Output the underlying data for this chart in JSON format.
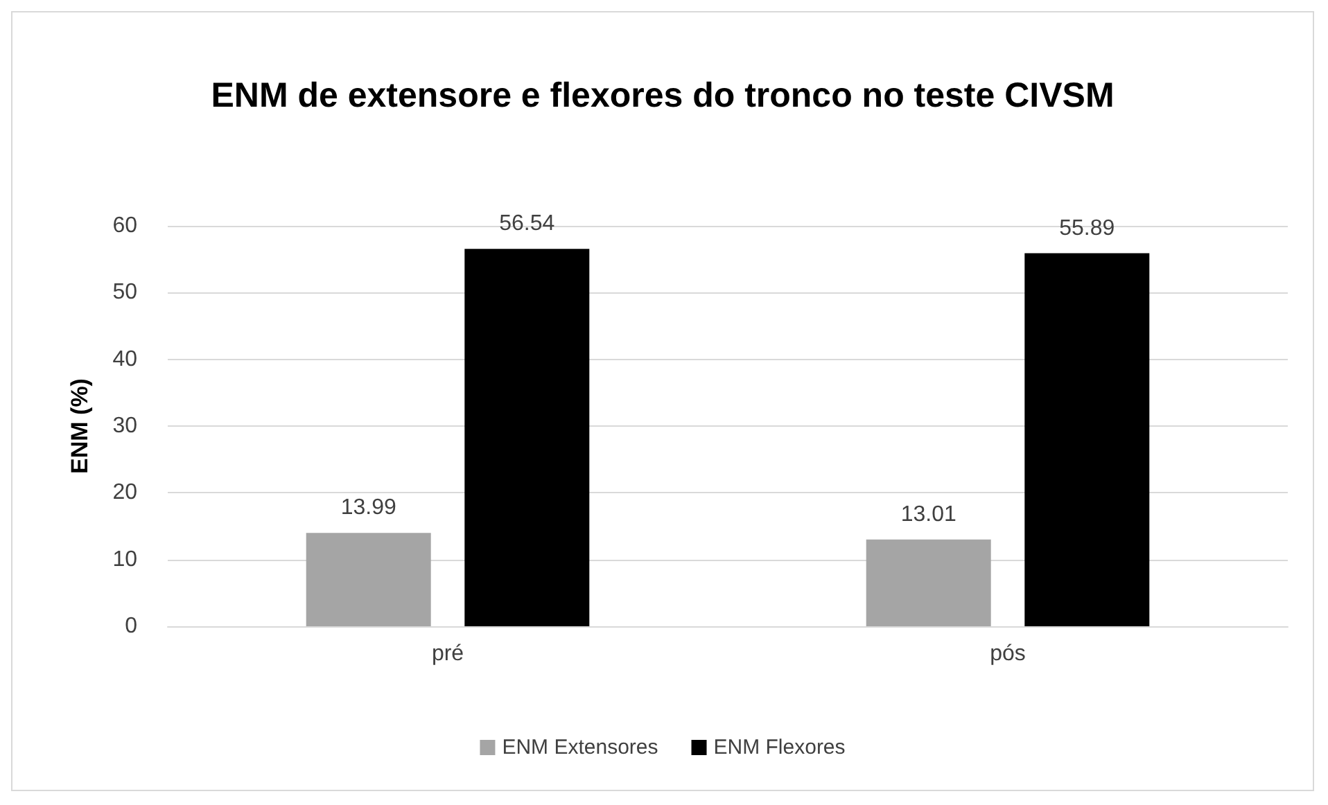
{
  "chart_data": {
    "type": "bar",
    "title": "ENM de extensore e flexores do tronco no teste CIVSM",
    "ylabel": "ENM (%)",
    "categories": [
      "pré",
      "pós"
    ],
    "series": [
      {
        "name": "ENM Extensores",
        "color": "#a5a5a5",
        "values": [
          13.99,
          13.01
        ]
      },
      {
        "name": "ENM Flexores",
        "color": "#000000",
        "values": [
          56.54,
          55.89
        ]
      }
    ],
    "ylim": [
      0,
      60
    ],
    "yticks": [
      0,
      10,
      20,
      30,
      40,
      50,
      60
    ],
    "grid": "y",
    "legend": "bottom",
    "data_labels": true
  }
}
